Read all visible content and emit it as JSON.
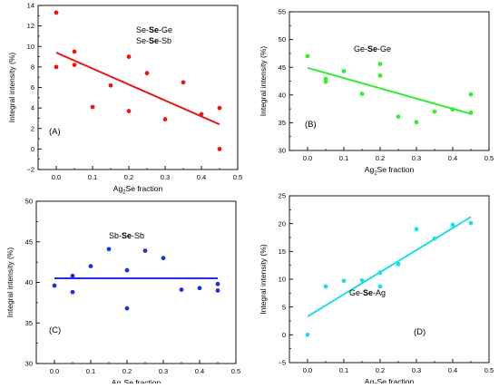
{
  "chart_data": [
    {
      "type": "scatter",
      "panel_label": "(A)",
      "annotation": [
        [
          {
            "t": "Se-",
            "b": false
          },
          {
            "t": "Se",
            "b": true
          },
          {
            "t": "-Ge",
            "b": false
          }
        ],
        [
          {
            "t": "Se-",
            "b": false
          },
          {
            "t": "Se",
            "b": true
          },
          {
            "t": "-Sb",
            "b": false
          }
        ]
      ],
      "ylabel": "Integral intensity (%)",
      "xlabel": {
        "pre": "Ag",
        "sub": "2",
        "post": "Se fraction"
      },
      "xlim": [
        -0.05,
        0.5
      ],
      "ylim": [
        -2,
        14
      ],
      "xticks": [
        0.0,
        0.1,
        0.2,
        0.3,
        0.4,
        0.5
      ],
      "xtick_labels": [
        "0.0",
        "0.1",
        "0.2",
        "0.3",
        "0.4",
        "0.5"
      ],
      "yticks": [
        -2,
        0,
        2,
        4,
        6,
        8,
        10,
        12,
        14
      ],
      "ytick_labels": [
        "−2",
        "0",
        "2",
        "4",
        "6",
        "8",
        "10",
        "12",
        "14"
      ],
      "color": "#e31a1c",
      "points": [
        [
          0.0,
          13.3
        ],
        [
          0.0,
          8.0
        ],
        [
          0.05,
          9.5
        ],
        [
          0.05,
          8.2
        ],
        [
          0.1,
          4.1
        ],
        [
          0.15,
          6.2
        ],
        [
          0.2,
          9.0
        ],
        [
          0.2,
          3.7
        ],
        [
          0.25,
          7.4
        ],
        [
          0.3,
          2.9
        ],
        [
          0.35,
          6.5
        ],
        [
          0.4,
          3.4
        ],
        [
          0.45,
          4.0
        ],
        [
          0.45,
          0.0
        ]
      ],
      "fit": [
        [
          0.0,
          9.4
        ],
        [
          0.45,
          2.4
        ]
      ]
    },
    {
      "type": "scatter",
      "panel_label": "(B)",
      "annotation": [
        [
          {
            "t": "Ge-",
            "b": false
          },
          {
            "t": "Se",
            "b": true
          },
          {
            "t": "-Ge",
            "b": false
          }
        ]
      ],
      "ylabel": "Integral intensity (%)",
      "xlabel": {
        "pre": "Ag",
        "sub": "2",
        "post": "Se fraction"
      },
      "xlim": [
        -0.05,
        0.5
      ],
      "ylim": [
        30,
        55
      ],
      "xticks": [
        0.0,
        0.1,
        0.2,
        0.3,
        0.4,
        0.5
      ],
      "xtick_labels": [
        "0.0",
        "0.1",
        "0.2",
        "0.3",
        "0.4",
        "0.5"
      ],
      "yticks": [
        30,
        35,
        40,
        45,
        50,
        55
      ],
      "ytick_labels": [
        "30",
        "35",
        "40",
        "45",
        "50",
        "55"
      ],
      "color": "#33ee33",
      "points": [
        [
          0.0,
          47.0
        ],
        [
          0.05,
          42.9
        ],
        [
          0.05,
          42.4
        ],
        [
          0.1,
          44.3
        ],
        [
          0.15,
          40.2
        ],
        [
          0.2,
          45.6
        ],
        [
          0.2,
          43.5
        ],
        [
          0.25,
          36.1
        ],
        [
          0.3,
          35.1
        ],
        [
          0.35,
          37.0
        ],
        [
          0.4,
          37.4
        ],
        [
          0.45,
          40.1
        ],
        [
          0.45,
          36.8
        ]
      ],
      "fit": [
        [
          0.0,
          44.9
        ],
        [
          0.45,
          36.6
        ]
      ]
    },
    {
      "type": "scatter",
      "panel_label": "(C)",
      "annotation": [
        [
          {
            "t": "Sb-",
            "b": false
          },
          {
            "t": "Se",
            "b": true
          },
          {
            "t": "-Sb",
            "b": false
          }
        ]
      ],
      "ylabel": "Integral intensity (%)",
      "xlabel": {
        "pre": "Ag",
        "sub": "2",
        "post": "Se fraction"
      },
      "xlim": [
        -0.05,
        0.5
      ],
      "ylim": [
        30,
        50
      ],
      "xticks": [
        0.0,
        0.1,
        0.2,
        0.3,
        0.4,
        0.5
      ],
      "xtick_labels": [
        "0.0",
        "0.1",
        "0.2",
        "0.3",
        "0.4",
        "0.5"
      ],
      "yticks": [
        30,
        35,
        40,
        45,
        50
      ],
      "ytick_labels": [
        "30",
        "35",
        "40",
        "45",
        "50"
      ],
      "color": "#1f2fdc",
      "points": [
        [
          0.0,
          39.6
        ],
        [
          0.05,
          40.8
        ],
        [
          0.05,
          38.8
        ],
        [
          0.1,
          42.0
        ],
        [
          0.15,
          44.1
        ],
        [
          0.2,
          41.5
        ],
        [
          0.2,
          36.8
        ],
        [
          0.25,
          43.9
        ],
        [
          0.3,
          43.0
        ],
        [
          0.35,
          39.1
        ],
        [
          0.4,
          39.3
        ],
        [
          0.45,
          39.8
        ],
        [
          0.45,
          39.0
        ]
      ],
      "fit": [
        [
          0.0,
          40.5
        ],
        [
          0.45,
          40.5
        ]
      ]
    },
    {
      "type": "scatter",
      "panel_label": "(D)",
      "annotation": [
        [
          {
            "t": "Ge-",
            "b": false
          },
          {
            "t": "Se",
            "b": true
          },
          {
            "t": "-Ag",
            "b": false
          }
        ]
      ],
      "ylabel": "Integral intensity (%)",
      "xlabel": {
        "pre": "Ag",
        "sub": "2",
        "post": "Se fraction"
      },
      "xlim": [
        -0.05,
        0.5
      ],
      "ylim": [
        -5,
        25
      ],
      "xticks": [
        0.0,
        0.1,
        0.2,
        0.3,
        0.4,
        0.5
      ],
      "xtick_labels": [
        "0.0",
        "0.1",
        "0.2",
        "0.3",
        "0.4",
        "0.5"
      ],
      "yticks": [
        -5,
        0,
        5,
        10,
        15,
        20,
        25
      ],
      "ytick_labels": [
        "−5",
        "0",
        "5",
        "10",
        "15",
        "20",
        "25"
      ],
      "color": "#22dde5",
      "points": [
        [
          0.0,
          0.0
        ],
        [
          0.05,
          8.7
        ],
        [
          0.1,
          9.7
        ],
        [
          0.15,
          9.8
        ],
        [
          0.2,
          11.2
        ],
        [
          0.2,
          8.7
        ],
        [
          0.25,
          12.7
        ],
        [
          0.3,
          19.0
        ],
        [
          0.35,
          17.3
        ],
        [
          0.4,
          19.8
        ],
        [
          0.45,
          20.1
        ]
      ],
      "fit": [
        [
          0.0,
          3.3
        ],
        [
          0.45,
          21.2
        ]
      ]
    }
  ]
}
